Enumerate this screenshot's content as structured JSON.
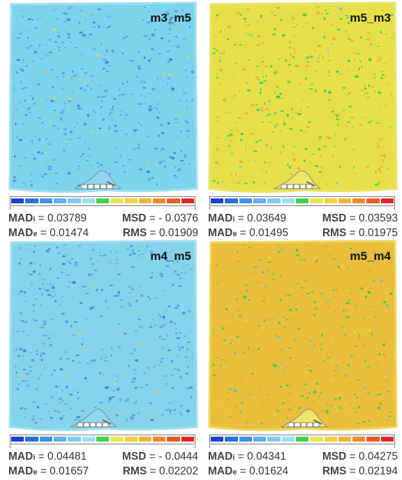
{
  "panels": [
    {
      "label": "m3_m5",
      "base_color": "#7ed3ec",
      "edge_color": "#9fe0ef",
      "mad_i": "0.03789",
      "msd": "- 0.0376",
      "mad_e": "0.01474",
      "rms": "0.01909",
      "curve_shift": 0
    },
    {
      "label": "m5_m3",
      "base_color": "#e6e14a",
      "edge_color": "#eae36a",
      "mad_i": "0.03649",
      "msd": "0.03593",
      "mad_e": "0.01495",
      "rms": "0.01975",
      "curve_shift": 0
    },
    {
      "label": "m4_m5",
      "base_color": "#86d3ec",
      "edge_color": "#9fe0ef",
      "mad_i": "0.04481",
      "msd": "- 0.0444",
      "mad_e": "0.01657",
      "rms": "0.02202",
      "curve_shift": -6
    },
    {
      "label": "m5_m4",
      "base_color": "#eabf3c",
      "edge_color": "#edd85a",
      "mad_i": "0.04341",
      "msd": "0.04275",
      "mad_e": "0.01624",
      "rms": "0.02194",
      "curve_shift": 10
    }
  ],
  "stat_labels": {
    "mad": "MAD",
    "i": "i",
    "e": "e",
    "msd": "MSD",
    "rms": "RMS",
    "eq": " = "
  },
  "scale_colors": [
    "#1c3fd6",
    "#2d6ee0",
    "#3d93e6",
    "#5fb1ec",
    "#7ecbf0",
    "#9ddff3",
    "#3fd24a",
    "#e9e552",
    "#f2cf3c",
    "#f1b436",
    "#ee8a2c",
    "#ea5a28",
    "#e22626"
  ]
}
